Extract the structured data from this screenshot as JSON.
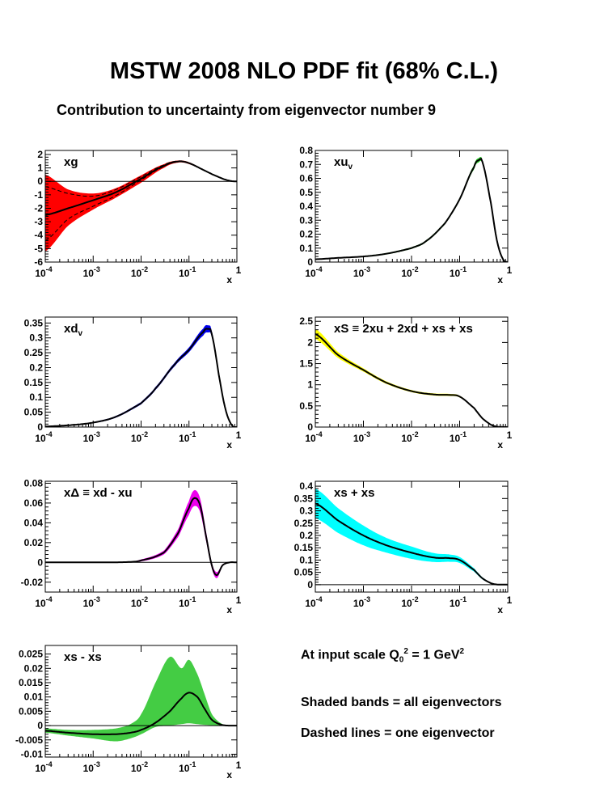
{
  "title": "MSTW 2008 NLO PDF fit (68% C.L.)",
  "subtitle": "Contribution to uncertainty from eigenvector number 9",
  "notes": {
    "scale_prefix": "At input scale Q",
    "scale_sub": "0",
    "scale_sup": "2",
    "scale_mid": " = 1 GeV",
    "scale_sup2": "2",
    "shaded": "Shaded bands = all eigenvectors",
    "dashed": "Dashed lines = one eigenvector"
  },
  "chart_data": [
    {
      "id": "xg",
      "type": "area",
      "label": "xg",
      "color": "#ff0000",
      "xlabel": "x",
      "xscale": "log",
      "xlim": [
        0.0001,
        1
      ],
      "ylim": [
        -6,
        2.3
      ],
      "yticks": [
        -6,
        -5,
        -4,
        -3,
        -2,
        -1,
        0,
        1,
        2
      ],
      "ytick_labels": [
        "-6",
        "-5",
        "-4",
        "-3",
        "-2",
        "-1",
        "0",
        "1",
        "2"
      ],
      "xticks": [
        "10-4",
        "10-3",
        "10-2",
        "10-1",
        "1"
      ],
      "x": [
        0.0001,
        0.0003,
        0.001,
        0.003,
        0.01,
        0.03,
        0.06,
        0.1,
        0.2,
        0.4,
        0.7,
        1
      ],
      "central": [
        -2.5,
        -2.0,
        -1.4,
        -0.8,
        0.2,
        1.15,
        1.48,
        1.35,
        0.85,
        0.35,
        0.05,
        0
      ],
      "lower": [
        -5.2,
        -3.3,
        -2.1,
        -1.2,
        -0.1,
        1.0,
        1.4,
        1.28,
        0.82,
        0.33,
        0.05,
        0
      ],
      "upper": [
        0.5,
        -0.6,
        -0.9,
        -0.5,
        0.45,
        1.28,
        1.55,
        1.42,
        0.88,
        0.37,
        0.05,
        0
      ],
      "dashed_low": [
        -4.4,
        -2.8,
        -1.85,
        -1.05,
        0.1,
        1.1,
        1.46,
        1.33,
        0.84,
        0.34,
        0.05,
        0
      ],
      "dashed_high": [
        -0.4,
        -0.9,
        -1.1,
        -0.6,
        0.35,
        1.22,
        1.52,
        1.38,
        0.86,
        0.36,
        0.05,
        0
      ],
      "zero_line": true
    },
    {
      "id": "xuv",
      "type": "area",
      "label": "xu",
      "label_sub": "v",
      "color": "#22cc22",
      "xlabel": "x",
      "xscale": "log",
      "xlim": [
        0.0001,
        1
      ],
      "ylim": [
        0,
        0.8
      ],
      "yticks": [
        0,
        0.1,
        0.2,
        0.3,
        0.4,
        0.5,
        0.6,
        0.7,
        0.8
      ],
      "ytick_labels": [
        "0",
        "0.1",
        "0.2",
        "0.3",
        "0.4",
        "0.5",
        "0.6",
        "0.7",
        "0.8"
      ],
      "xticks": [
        "10-4",
        "10-3",
        "10-2",
        "10-1",
        "1"
      ],
      "x": [
        0.0001,
        0.0003,
        0.001,
        0.003,
        0.01,
        0.02,
        0.05,
        0.1,
        0.2,
        0.25,
        0.3,
        0.45,
        0.6,
        0.8,
        1
      ],
      "central": [
        0.02,
        0.03,
        0.04,
        0.06,
        0.1,
        0.15,
        0.28,
        0.45,
        0.68,
        0.73,
        0.71,
        0.42,
        0.15,
        0.02,
        0
      ],
      "band": [
        0.003,
        0.003,
        0.004,
        0.005,
        0.006,
        0.007,
        0.008,
        0.01,
        0.015,
        0.015,
        0.012,
        0.008,
        0.005,
        0.002,
        0
      ],
      "zero_line": false
    },
    {
      "id": "xdv",
      "type": "area",
      "label": "xd",
      "label_sub": "v",
      "color": "#0000ee",
      "xlabel": "x",
      "xscale": "log",
      "xlim": [
        0.0001,
        1
      ],
      "ylim": [
        0,
        0.37
      ],
      "yticks": [
        0,
        0.05,
        0.1,
        0.15,
        0.2,
        0.25,
        0.3,
        0.35
      ],
      "ytick_labels": [
        "0",
        "0.05",
        "0.1",
        "0.15",
        "0.2",
        "0.25",
        "0.3",
        "0.35"
      ],
      "xticks": [
        "10-4",
        "10-3",
        "10-2",
        "10-1",
        "1"
      ],
      "x": [
        0.0001,
        0.0003,
        0.001,
        0.003,
        0.01,
        0.02,
        0.05,
        0.1,
        0.2,
        0.25,
        0.3,
        0.45,
        0.6,
        0.8,
        1
      ],
      "central": [
        0.002,
        0.006,
        0.015,
        0.035,
        0.08,
        0.13,
        0.21,
        0.26,
        0.32,
        0.33,
        0.31,
        0.15,
        0.05,
        0.005,
        0
      ],
      "band": [
        0.001,
        0.001,
        0.002,
        0.003,
        0.004,
        0.005,
        0.006,
        0.008,
        0.012,
        0.012,
        0.01,
        0.006,
        0.003,
        0.001,
        0
      ],
      "zero_line": false
    },
    {
      "id": "xS",
      "type": "area",
      "label": "xS ≡ 2xu + 2xd + xs + xs",
      "color": "#ffff00",
      "xlabel": "x",
      "xscale": "log",
      "xlim": [
        0.0001,
        1
      ],
      "ylim": [
        0,
        2.6
      ],
      "yticks": [
        0,
        0.5,
        1,
        1.5,
        2,
        2.5
      ],
      "ytick_labels": [
        "0",
        "0.5",
        "1",
        "1.5",
        "2",
        "2.5"
      ],
      "xticks": [
        "10-4",
        "10-3",
        "10-2",
        "10-1",
        "1"
      ],
      "x": [
        0.0001,
        0.0003,
        0.001,
        0.003,
        0.01,
        0.03,
        0.06,
        0.1,
        0.2,
        0.3,
        0.5,
        1
      ],
      "central": [
        2.2,
        1.7,
        1.35,
        1.05,
        0.85,
        0.77,
        0.76,
        0.72,
        0.45,
        0.2,
        0.03,
        0
      ],
      "band": [
        0.12,
        0.07,
        0.04,
        0.03,
        0.025,
        0.025,
        0.025,
        0.02,
        0.01,
        0.005,
        0.002,
        0
      ],
      "zero_line": false
    },
    {
      "id": "xDelta",
      "type": "area",
      "label": "xΔ ≡ xd - xu",
      "color": "#ee00ee",
      "xlabel": "x",
      "xscale": "log",
      "xlim": [
        0.0001,
        1
      ],
      "ylim": [
        -0.03,
        0.082
      ],
      "yticks": [
        -0.02,
        0,
        0.02,
        0.04,
        0.06,
        0.08
      ],
      "ytick_labels": [
        "-0.02",
        "0",
        "0.02",
        "0.04",
        "0.06",
        "0.08"
      ],
      "xticks": [
        "10-4",
        "10-3",
        "10-2",
        "10-1",
        "1"
      ],
      "x": [
        0.0001,
        0.001,
        0.005,
        0.01,
        0.03,
        0.06,
        0.1,
        0.13,
        0.17,
        0.22,
        0.3,
        0.38,
        0.5,
        0.7,
        1
      ],
      "central": [
        0,
        0,
        0.0003,
        0.002,
        0.01,
        0.03,
        0.055,
        0.065,
        0.058,
        0.03,
        -0.003,
        -0.013,
        -0.003,
        0,
        0
      ],
      "band": [
        0,
        0,
        0.0002,
        0.001,
        0.002,
        0.004,
        0.007,
        0.008,
        0.007,
        0.005,
        0.003,
        0.003,
        0.001,
        0,
        0
      ],
      "zero_line": true
    },
    {
      "id": "xsplus",
      "type": "area",
      "label": "xs + xs",
      "color": "#00ffff",
      "xlabel": "x",
      "xscale": "log",
      "xlim": [
        0.0001,
        1
      ],
      "ylim": [
        -0.03,
        0.42
      ],
      "yticks": [
        0,
        0.05,
        0.1,
        0.15,
        0.2,
        0.25,
        0.3,
        0.35,
        0.4
      ],
      "ytick_labels": [
        "0",
        "0.05",
        "0.1",
        "0.15",
        "0.2",
        "0.25",
        "0.3",
        "0.35",
        "0.4"
      ],
      "xticks": [
        "10-4",
        "10-3",
        "10-2",
        "10-1",
        "1"
      ],
      "x": [
        0.0001,
        0.0003,
        0.001,
        0.003,
        0.01,
        0.03,
        0.06,
        0.1,
        0.2,
        0.3,
        0.5,
        1
      ],
      "central": [
        0.33,
        0.26,
        0.2,
        0.16,
        0.13,
        0.11,
        0.108,
        0.1,
        0.06,
        0.025,
        0.003,
        0
      ],
      "band": [
        0.06,
        0.05,
        0.04,
        0.03,
        0.025,
        0.018,
        0.015,
        0.012,
        0.007,
        0.004,
        0.001,
        0
      ],
      "zero_line": true
    },
    {
      "id": "xsminus",
      "type": "area",
      "label": "xs - xs",
      "color": "#44cc44",
      "xlabel": "x",
      "xscale": "log",
      "xlim": [
        0.0001,
        1
      ],
      "ylim": [
        -0.011,
        0.028
      ],
      "yticks": [
        -0.01,
        -0.005,
        0,
        0.005,
        0.01,
        0.015,
        0.02,
        0.025
      ],
      "ytick_labels": [
        "-0.01",
        "-0.005",
        "0",
        "0.005",
        "0.01",
        "0.015",
        "0.02",
        "0.025"
      ],
      "xticks": [
        "10-4",
        "10-3",
        "10-2",
        "10-1",
        "1"
      ],
      "x": [
        0.0001,
        0.0003,
        0.001,
        0.003,
        0.006,
        0.01,
        0.02,
        0.04,
        0.07,
        0.1,
        0.15,
        0.2,
        0.3,
        0.5,
        1
      ],
      "central": [
        -0.0018,
        -0.0025,
        -0.003,
        -0.003,
        -0.0025,
        -0.0015,
        0.001,
        0.005,
        0.0095,
        0.0115,
        0.01,
        0.0065,
        0.002,
        0.0002,
        0
      ],
      "lower": [
        -0.0025,
        -0.0035,
        -0.0045,
        -0.0055,
        -0.0045,
        -0.003,
        -0.0005,
        0.0,
        0.0005,
        0.0008,
        0.0005,
        0.0003,
        0.0001,
        0,
        0
      ],
      "upper": [
        -0.001,
        -0.0015,
        -0.0015,
        -0.001,
        0.0005,
        0.004,
        0.015,
        0.024,
        0.02,
        0.023,
        0.018,
        0.012,
        0.004,
        0.0005,
        0
      ],
      "zero_line": true
    }
  ]
}
